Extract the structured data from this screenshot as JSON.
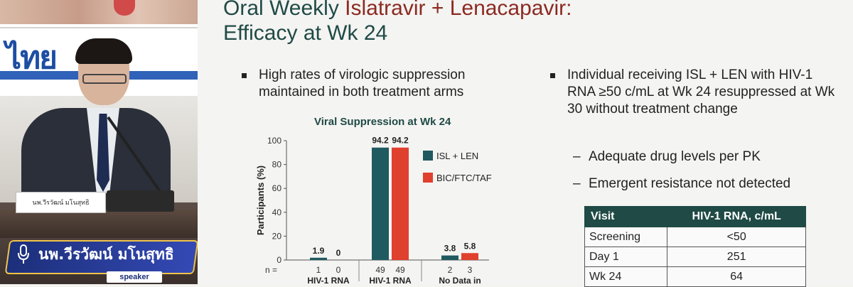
{
  "video": {
    "banner_text": "ไทย",
    "nameplate": "นพ.วีรวัฒน์ มโนสุทธิ",
    "speaker_name": "นพ.วีรวัฒน์ มโนสุทธิ",
    "speaker_role": "speaker",
    "mic_icon": "microphone-icon"
  },
  "slide": {
    "title_part1": "Oral Weekly ",
    "title_part2": "Islatravir + Lenacapavir:",
    "title_line2": "Efficacy at Wk 24",
    "title_accent_color": "#8c2a22",
    "title_color": "#1f4a45",
    "bullet_left": "High rates of virologic suppression maintained in both treatment arms",
    "bullet_right": "Individual receiving ISL + LEN with HIV-1 RNA ≥50 c/mL at Wk 24 resuppressed at Wk 30 without treatment change",
    "sub_bullets": [
      "Adequate drug levels per PK",
      "Emergent resistance not detected"
    ],
    "table": {
      "headers": [
        "Visit",
        "HIV-1 RNA, c/mL"
      ],
      "rows": [
        [
          "Screening",
          "<50"
        ],
        [
          "Day 1",
          "251"
        ],
        [
          "Wk 24",
          "64"
        ]
      ]
    }
  },
  "chart_data": {
    "type": "bar",
    "title": "Viral Suppression at Wk 24",
    "ylabel": "Participants (%)",
    "ylim": [
      0,
      100
    ],
    "yticks": [
      0,
      20,
      40,
      60,
      80,
      100
    ],
    "categories": [
      "HIV-1 RNA",
      "HIV-1 RNA",
      "No Data in"
    ],
    "series": [
      {
        "name": "ISL + LEN",
        "color": "#1f5a60",
        "values": [
          1.9,
          94.2,
          3.8
        ],
        "n": [
          "1",
          "49",
          "2"
        ]
      },
      {
        "name": "BIC/FTC/TAF",
        "color": "#e0402e",
        "values": [
          0,
          94.2,
          5.8
        ],
        "n": [
          "0",
          "49",
          "3"
        ]
      }
    ],
    "value_labels": [
      [
        "1.9",
        "94.2",
        "3.8"
      ],
      [
        "0",
        "94.2",
        "5.8"
      ]
    ],
    "n_label": "n =",
    "legend_position": "top-right"
  }
}
